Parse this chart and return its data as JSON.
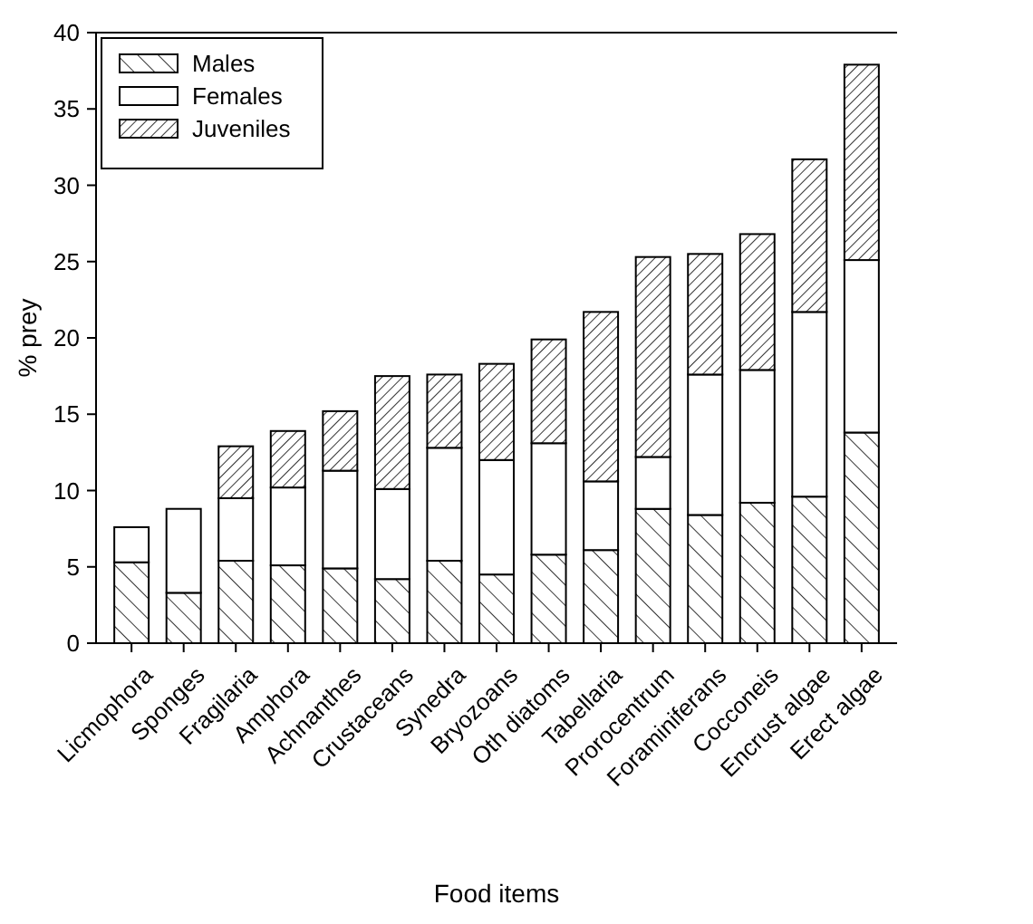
{
  "chart_data": {
    "type": "bar",
    "stacked": true,
    "xlabel": "Food items",
    "ylabel": "% prey",
    "categories": [
      "Licmophora",
      "Sponges",
      "Fragilaria",
      "Amphora",
      "Achnanthes",
      "Crustaceans",
      "Synedra",
      "Bryozoans",
      "Oth diatoms",
      "Tabellaria",
      "Prorocentrum",
      "Foraminiferans",
      "Cocconeis",
      "Encrust algae",
      "Erect algae"
    ],
    "series": [
      {
        "name": "Males",
        "color": "#ffffff",
        "values": [
          5.3,
          3.3,
          5.4,
          5.1,
          4.9,
          4.2,
          5.4,
          4.5,
          5.8,
          6.1,
          8.8,
          8.4,
          9.2,
          9.6,
          13.8
        ]
      },
      {
        "name": "Females",
        "color": "#ffffff",
        "values": [
          2.3,
          5.5,
          4.1,
          5.1,
          6.4,
          5.9,
          7.4,
          7.5,
          7.3,
          4.5,
          3.4,
          9.2,
          8.7,
          12.1,
          11.3
        ]
      },
      {
        "name": "Juveniles",
        "color": "#ffffff",
        "values": [
          0,
          0,
          3.4,
          3.7,
          3.9,
          7.4,
          4.8,
          6.3,
          6.8,
          11.1,
          13.1,
          7.9,
          8.9,
          10.0,
          12.8
        ]
      }
    ],
    "ylim": [
      0,
      40
    ],
    "yticks": [
      0,
      5,
      10,
      15,
      20,
      25,
      30,
      35,
      40
    ],
    "grid": false,
    "legend": "top left"
  }
}
